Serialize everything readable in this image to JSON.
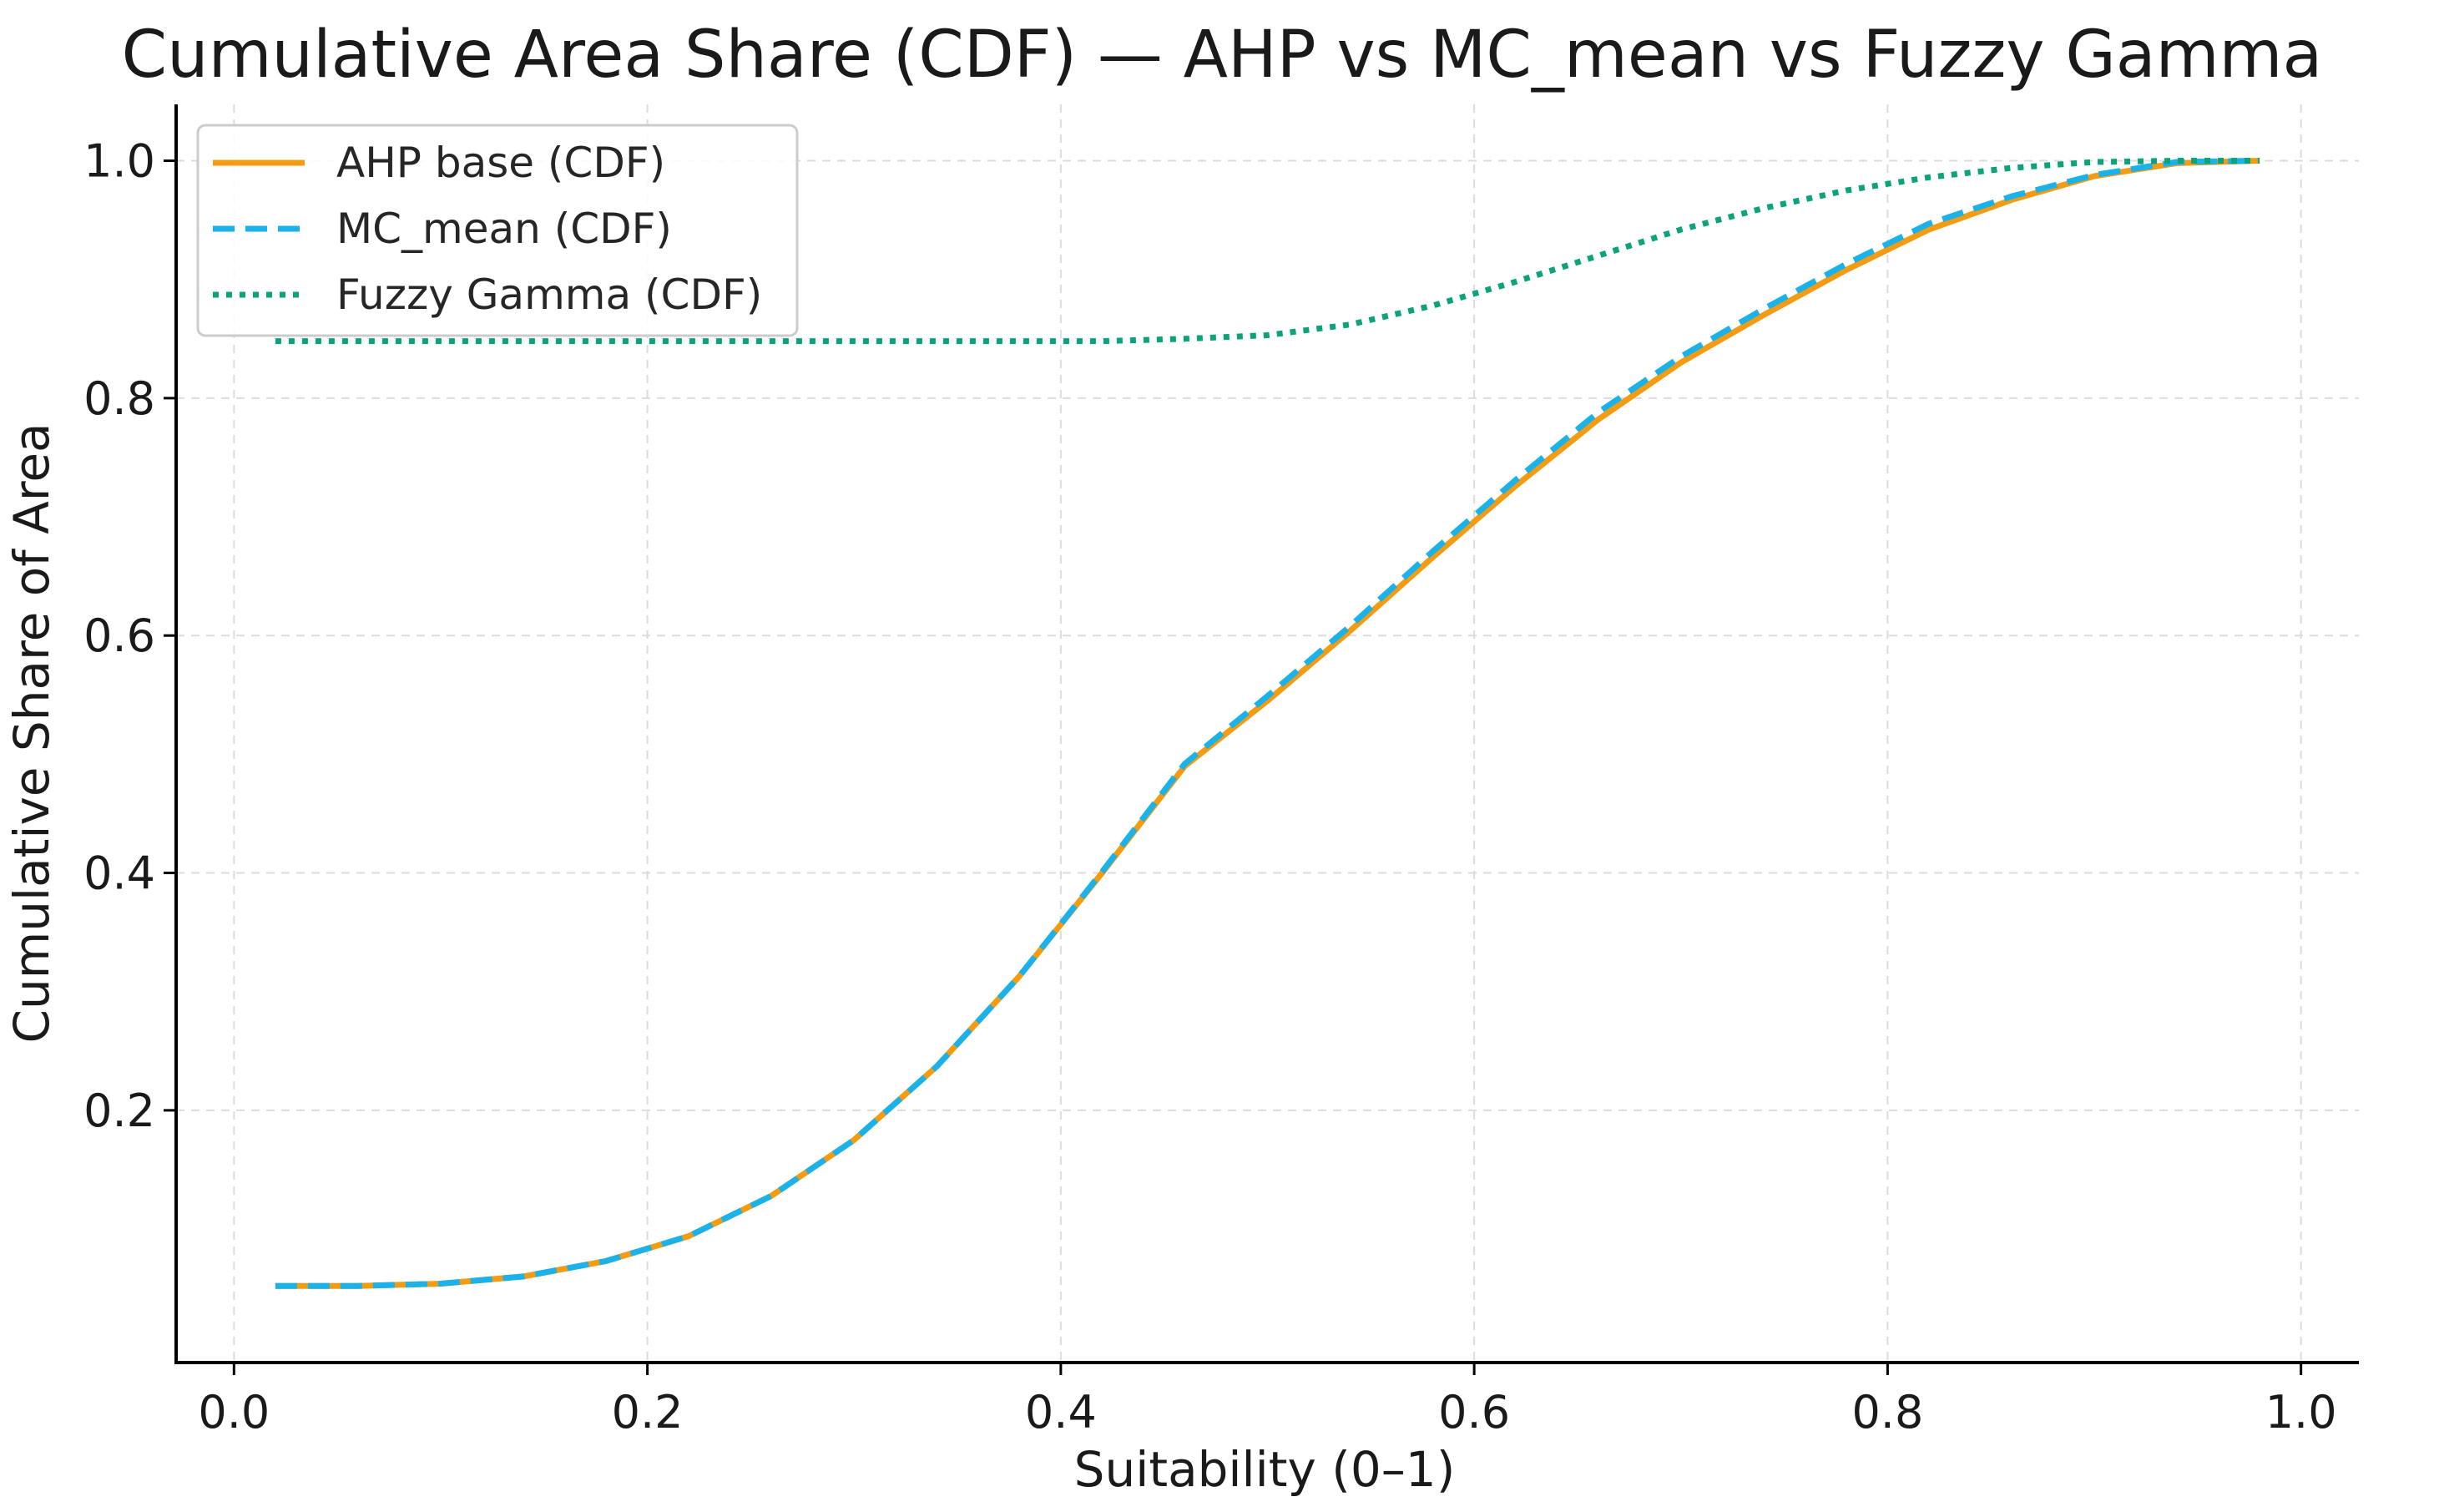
{
  "chart_data": {
    "type": "line",
    "title": "Cumulative Area Share (CDF) — AHP vs MC_mean vs Fuzzy Gamma",
    "xlabel": "Suitability (0–1)",
    "ylabel": "Cumulative Share of Area",
    "xlim": [
      -0.028,
      1.028
    ],
    "ylim": [
      -0.0125,
      1.0475
    ],
    "x_ticks": [
      0.0,
      0.2,
      0.4,
      0.6,
      0.8,
      1.0
    ],
    "x_tick_labels": [
      "0.0",
      "0.2",
      "0.4",
      "0.6",
      "0.8",
      "1.0"
    ],
    "y_ticks": [
      0.2,
      0.4,
      0.6,
      0.8,
      1.0
    ],
    "y_tick_labels": [
      "0.2",
      "0.4",
      "0.6",
      "0.8",
      "1.0"
    ],
    "grid": true,
    "legend_position": "upper-left",
    "x": [
      0.02,
      0.06,
      0.1,
      0.14,
      0.18,
      0.22,
      0.26,
      0.3,
      0.34,
      0.38,
      0.42,
      0.46,
      0.5,
      0.54,
      0.58,
      0.62,
      0.66,
      0.7,
      0.74,
      0.78,
      0.82,
      0.86,
      0.9,
      0.94,
      0.98
    ],
    "series": [
      {
        "name": "AHP base (CDF)",
        "color": "#f39c12",
        "style": "solid",
        "values": [
          0.052,
          0.052,
          0.054,
          0.06,
          0.073,
          0.094,
          0.128,
          0.175,
          0.237,
          0.313,
          0.4,
          0.49,
          0.545,
          0.604,
          0.666,
          0.726,
          0.782,
          0.83,
          0.87,
          0.908,
          0.942,
          0.967,
          0.987,
          0.998,
          1.0
        ]
      },
      {
        "name": "MC_mean (CDF)",
        "color": "#1ab2e8",
        "style": "dashed",
        "values": [
          0.052,
          0.052,
          0.054,
          0.06,
          0.073,
          0.094,
          0.128,
          0.175,
          0.237,
          0.313,
          0.401,
          0.492,
          0.549,
          0.608,
          0.671,
          0.731,
          0.788,
          0.835,
          0.875,
          0.913,
          0.947,
          0.97,
          0.988,
          0.999,
          1.0
        ]
      },
      {
        "name": "Fuzzy Gamma (CDF)",
        "color": "#0aa37a",
        "style": "dotted",
        "values": [
          0.848,
          0.848,
          0.848,
          0.848,
          0.848,
          0.848,
          0.848,
          0.848,
          0.848,
          0.848,
          0.848,
          0.85,
          0.853,
          0.862,
          0.878,
          0.898,
          0.92,
          0.942,
          0.96,
          0.975,
          0.986,
          0.994,
          0.999,
          1.0,
          1.0
        ]
      }
    ]
  }
}
